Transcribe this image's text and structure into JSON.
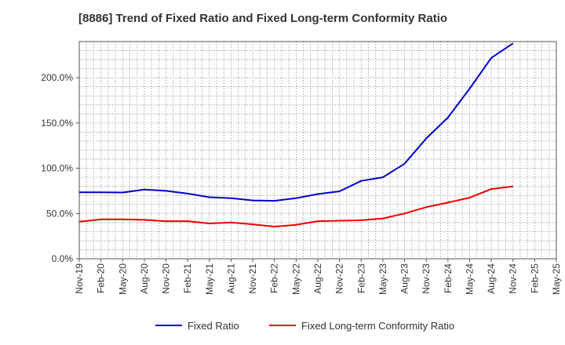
{
  "chart_data": {
    "type": "line",
    "title": "[8886]  Trend of Fixed Ratio and Fixed Long-term Conformity Ratio",
    "categories": [
      "Nov-19",
      "Feb-20",
      "May-20",
      "Aug-20",
      "Nov-20",
      "Feb-21",
      "May-21",
      "Aug-21",
      "Nov-21",
      "Feb-22",
      "May-22",
      "Aug-22",
      "Nov-22",
      "Feb-23",
      "May-23",
      "Aug-23",
      "Nov-23",
      "Feb-24",
      "May-24",
      "Aug-24",
      "Nov-24",
      "Feb-25",
      "May-25"
    ],
    "y_ticks": [
      "0.0%",
      "50.0%",
      "100.0%",
      "150.0%",
      "200.0%"
    ],
    "ylim": [
      0,
      240
    ],
    "y_unit": "%",
    "grid": true,
    "legend_position": "bottom",
    "series": [
      {
        "name": "Fixed Ratio",
        "color": "#0000cc",
        "values": [
          73.5,
          73.5,
          73.2,
          76.5,
          75,
          72,
          68,
          67,
          64.5,
          64,
          67,
          71.5,
          74.5,
          86,
          90,
          105,
          133,
          156,
          188,
          222,
          238,
          null,
          null
        ]
      },
      {
        "name": "Fixed Long-term Conformity Ratio",
        "color": "#ee0000",
        "values": [
          41,
          43.5,
          43.5,
          43,
          41.5,
          41.5,
          39,
          40,
          38,
          35.5,
          37.5,
          41.5,
          42,
          42.5,
          44.5,
          50,
          57,
          62,
          67.5,
          77,
          80,
          null,
          null
        ]
      }
    ]
  }
}
